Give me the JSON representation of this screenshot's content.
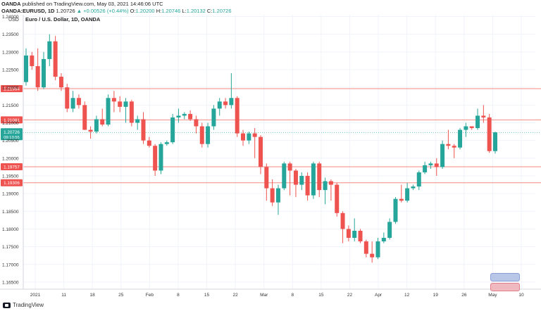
{
  "header": {
    "publisher": "OANDA",
    "published_text": "published on TradingView.com, May 03, 2021 14:46:06 UTC",
    "symbol": "OANDA:EURUSD, 1D",
    "last": "1.20726",
    "change": "▲ +0.00526 (+0.44%)",
    "o_label": "O:",
    "o_value": "1.20200",
    "h_label": "H:",
    "h_value": "1.20746",
    "l_label": "L:",
    "l_value": "1.20132",
    "c_label": "C:",
    "c_value": "1.20726"
  },
  "footer": {
    "brand": "TradingView"
  },
  "colors": {
    "up": "#26a69a",
    "down": "#ef5350",
    "level": "#f28b82",
    "last": "#26a69a",
    "text": "#333333"
  },
  "chart_data": {
    "type": "candlestick",
    "title": "Euro / U.S. Dollar, 1D, OANDA",
    "currency": "USD",
    "ylim": [
      1.163,
      1.2405
    ],
    "y_ticks": [
      "1.24000",
      "1.23500",
      "1.23000",
      "1.22500",
      "1.22000",
      "1.21500",
      "1.21000",
      "1.20500",
      "1.20000",
      "1.19500",
      "1.19000",
      "1.18500",
      "1.18000",
      "1.17500",
      "1.17000",
      "1.16500"
    ],
    "x_ticks": [
      "2021",
      "11",
      "18",
      "25",
      "Feb",
      "8",
      "15",
      "22",
      "Mar",
      "8",
      "15",
      "22",
      "Apr",
      "12",
      "19",
      "26",
      "May",
      "10"
    ],
    "levels": [
      {
        "value": 1.21964,
        "label": "1.21964"
      },
      {
        "value": 1.21081,
        "label": "1.21081"
      },
      {
        "value": 1.19757,
        "label": "1.19757"
      },
      {
        "value": 1.19306,
        "label": "1.19306"
      }
    ],
    "last_price": {
      "value": 1.20726,
      "label": "1.20726",
      "countdown": "09:13:55"
    },
    "candles": [
      [
        1.2215,
        1.231,
        1.2205,
        1.229
      ],
      [
        1.229,
        1.23,
        1.225,
        1.226
      ],
      [
        1.226,
        1.231,
        1.219,
        1.22
      ],
      [
        1.22,
        1.23,
        1.2195,
        1.228
      ],
      [
        1.228,
        1.235,
        1.226,
        1.233
      ],
      [
        1.233,
        1.2345,
        1.222,
        1.223
      ],
      [
        1.223,
        1.224,
        1.219,
        1.22
      ],
      [
        1.22,
        1.221,
        1.213,
        1.214
      ],
      [
        1.214,
        1.219,
        1.213,
        1.217
      ],
      [
        1.217,
        1.218,
        1.214,
        1.215
      ],
      [
        1.215,
        1.216,
        1.208,
        1.208
      ],
      [
        1.208,
        1.209,
        1.2055,
        1.2075
      ],
      [
        1.2075,
        1.212,
        1.207,
        1.211
      ],
      [
        1.211,
        1.214,
        1.209,
        1.2095
      ],
      [
        1.2095,
        1.218,
        1.209,
        1.217
      ],
      [
        1.217,
        1.219,
        1.213,
        1.216
      ],
      [
        1.216,
        1.2175,
        1.213,
        1.2145
      ],
      [
        1.2145,
        1.217,
        1.21,
        1.216
      ],
      [
        1.216,
        1.2165,
        1.209,
        1.21
      ],
      [
        1.21,
        1.212,
        1.208,
        1.211
      ],
      [
        1.211,
        1.213,
        1.204,
        1.205
      ],
      [
        1.205,
        1.206,
        1.203,
        1.2035
      ],
      [
        1.2035,
        1.204,
        1.195,
        1.1965
      ],
      [
        1.1965,
        1.2045,
        1.1955,
        1.204
      ],
      [
        1.204,
        1.205,
        1.2035,
        1.2045
      ],
      [
        1.2045,
        1.2125,
        1.204,
        1.2115
      ],
      [
        1.2115,
        1.214,
        1.21,
        1.212
      ],
      [
        1.212,
        1.213,
        1.211,
        1.2125
      ],
      [
        1.2125,
        1.2135,
        1.2105,
        1.211
      ],
      [
        1.211,
        1.212,
        1.207,
        1.209
      ],
      [
        1.209,
        1.21,
        1.203,
        1.204
      ],
      [
        1.204,
        1.21,
        1.203,
        1.209
      ],
      [
        1.209,
        1.215,
        1.208,
        1.214
      ],
      [
        1.214,
        1.217,
        1.212,
        1.216
      ],
      [
        1.216,
        1.217,
        1.214,
        1.215
      ],
      [
        1.215,
        1.224,
        1.214,
        1.217
      ],
      [
        1.217,
        1.2175,
        1.206,
        1.207
      ],
      [
        1.207,
        1.208,
        1.2035,
        1.205
      ],
      [
        1.205,
        1.2075,
        1.204,
        1.207
      ],
      [
        1.207,
        1.2085,
        1.2,
        1.206
      ],
      [
        1.206,
        1.2065,
        1.1955,
        1.1975
      ],
      [
        1.1975,
        1.1985,
        1.188,
        1.1915
      ],
      [
        1.1915,
        1.194,
        1.1865,
        1.1875
      ],
      [
        1.1875,
        1.1925,
        1.184,
        1.1915
      ],
      [
        1.1915,
        1.199,
        1.191,
        1.1985
      ],
      [
        1.1985,
        1.199,
        1.1895,
        1.1965
      ],
      [
        1.1965,
        1.197,
        1.189,
        1.1925
      ],
      [
        1.1925,
        1.196,
        1.191,
        1.195
      ],
      [
        1.195,
        1.196,
        1.188,
        1.1895
      ],
      [
        1.1895,
        1.199,
        1.1885,
        1.1985
      ],
      [
        1.1985,
        1.199,
        1.189,
        1.191
      ],
      [
        1.191,
        1.1945,
        1.187,
        1.1935
      ],
      [
        1.1935,
        1.194,
        1.188,
        1.1925
      ],
      [
        1.1925,
        1.193,
        1.1835,
        1.1845
      ],
      [
        1.1845,
        1.185,
        1.176,
        1.18
      ],
      [
        1.18,
        1.181,
        1.1765,
        1.1775
      ],
      [
        1.1775,
        1.183,
        1.1765,
        1.1795
      ],
      [
        1.1795,
        1.18,
        1.176,
        1.1765
      ],
      [
        1.1765,
        1.177,
        1.172,
        1.173
      ],
      [
        1.173,
        1.1765,
        1.1705,
        1.172
      ],
      [
        1.172,
        1.1775,
        1.1715,
        1.1765
      ],
      [
        1.1765,
        1.179,
        1.176,
        1.1775
      ],
      [
        1.1775,
        1.183,
        1.177,
        1.182
      ],
      [
        1.182,
        1.189,
        1.1815,
        1.1885
      ],
      [
        1.1885,
        1.1925,
        1.1875,
        1.188
      ],
      [
        1.188,
        1.193,
        1.1875,
        1.1915
      ],
      [
        1.1915,
        1.1925,
        1.191,
        1.192
      ],
      [
        1.192,
        1.1965,
        1.191,
        1.196
      ],
      [
        1.196,
        1.199,
        1.1955,
        1.198
      ],
      [
        1.198,
        1.199,
        1.197,
        1.1985
      ],
      [
        1.1985,
        1.2,
        1.195,
        1.1975
      ],
      [
        1.1975,
        1.205,
        1.197,
        1.204
      ],
      [
        1.204,
        1.208,
        1.2025,
        1.2035
      ],
      [
        1.2035,
        1.204,
        1.2,
        1.203
      ],
      [
        1.203,
        1.2085,
        1.2025,
        1.208
      ],
      [
        1.208,
        1.21,
        1.206,
        1.209
      ],
      [
        1.209,
        1.209,
        1.208,
        1.2085
      ],
      [
        1.2085,
        1.214,
        1.208,
        1.212
      ],
      [
        1.212,
        1.215,
        1.21,
        1.2115
      ],
      [
        1.2115,
        1.2125,
        1.2015,
        1.202
      ],
      [
        1.202,
        1.2075,
        1.2013,
        1.2073
      ]
    ]
  }
}
